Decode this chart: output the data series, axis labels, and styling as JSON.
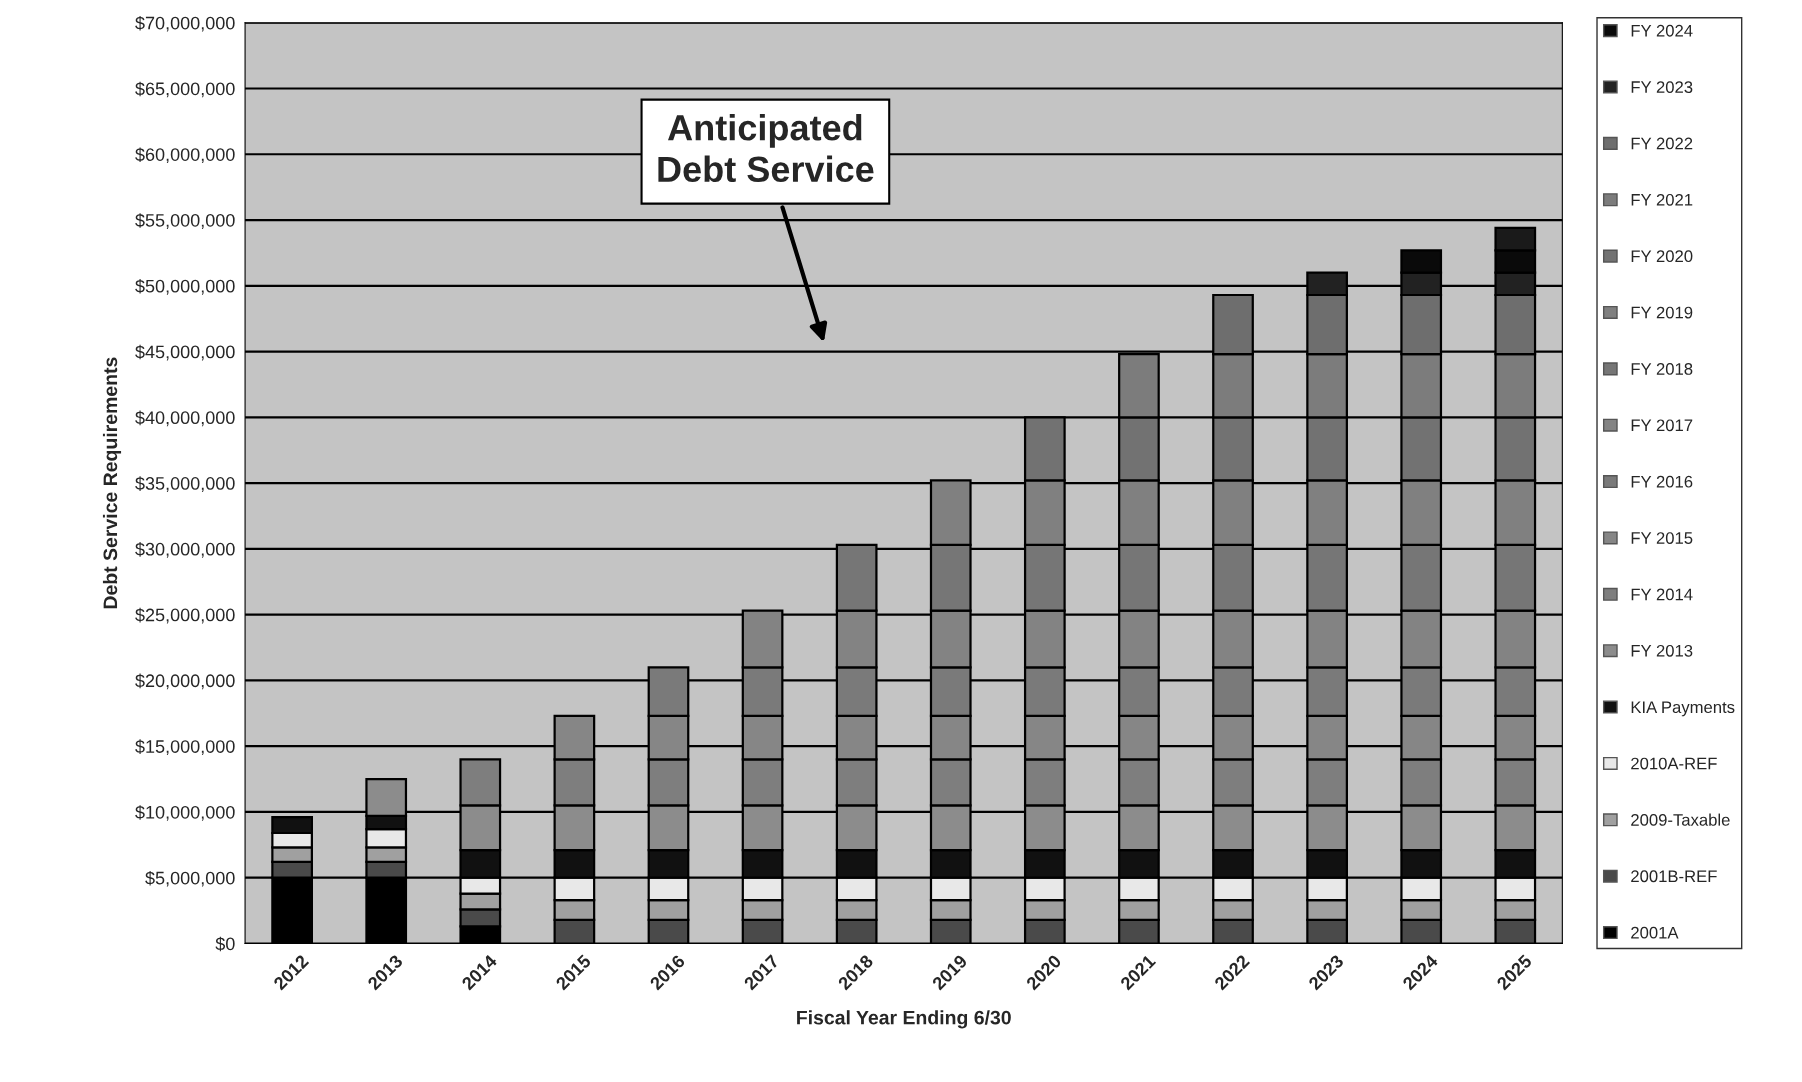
{
  "chart_data": {
    "type": "bar",
    "stacked": true,
    "xlabel": "Fiscal Year Ending 6/30",
    "ylabel": "Debt Service Requirements",
    "annotations": [
      "Anticipated\nDebt Service"
    ],
    "categories": [
      "2012",
      "2013",
      "2014",
      "2015",
      "2016",
      "2017",
      "2018",
      "2019",
      "2020",
      "2021",
      "2022",
      "2023",
      "2024",
      "2025"
    ],
    "ylim": [
      0,
      70000000
    ],
    "yticks": [
      {
        "value": 0,
        "label": "$0"
      },
      {
        "value": 5000000,
        "label": "$5,000,000"
      },
      {
        "value": 10000000,
        "label": "$10,000,000"
      },
      {
        "value": 15000000,
        "label": "$15,000,000"
      },
      {
        "value": 20000000,
        "label": "$20,000,000"
      },
      {
        "value": 25000000,
        "label": "$25,000,000"
      },
      {
        "value": 30000000,
        "label": "$30,000,000"
      },
      {
        "value": 35000000,
        "label": "$35,000,000"
      },
      {
        "value": 40000000,
        "label": "$40,000,000"
      },
      {
        "value": 45000000,
        "label": "$45,000,000"
      },
      {
        "value": 50000000,
        "label": "$50,000,000"
      },
      {
        "value": 55000000,
        "label": "$55,000,000"
      },
      {
        "value": 60000000,
        "label": "$60,000,000"
      },
      {
        "value": 65000000,
        "label": "$65,000,000"
      },
      {
        "value": 70000000,
        "label": "$70,000,000"
      }
    ],
    "grid": "y",
    "legend": "right",
    "series": [
      {
        "name": "2001A",
        "color": "#000000",
        "values": [
          5000000,
          5000000,
          1300000,
          null,
          null,
          null,
          null,
          null,
          null,
          null,
          null,
          null,
          null,
          null
        ]
      },
      {
        "name": "2001B-REF",
        "color": "#4a4a4a",
        "values": [
          1200000,
          1200000,
          1300000,
          1800000,
          1800000,
          1800000,
          1800000,
          1800000,
          1800000,
          1800000,
          1800000,
          1800000,
          1800000,
          1800000
        ]
      },
      {
        "name": "2009-Taxable",
        "color": "#a0a0a0",
        "values": [
          1100000,
          1100000,
          1200000,
          1500000,
          1500000,
          1500000,
          1500000,
          1500000,
          1500000,
          1500000,
          1500000,
          1500000,
          1500000,
          1500000
        ]
      },
      {
        "name": "2010A-REF",
        "color": "#e8e8e8",
        "values": [
          1100000,
          1400000,
          1200000,
          1700000,
          1700000,
          1700000,
          1700000,
          1700000,
          1700000,
          1700000,
          1700000,
          1700000,
          1700000,
          1700000
        ]
      },
      {
        "name": "KIA Payments",
        "color": "#111111",
        "values": [
          1200000,
          1000000,
          2100000,
          2100000,
          2100000,
          2100000,
          2100000,
          2100000,
          2100000,
          2100000,
          2100000,
          2100000,
          2100000,
          2100000
        ]
      },
      {
        "name": "FY 2013",
        "color": "#8c8c8c",
        "values": [
          null,
          2800000,
          3400000,
          3400000,
          3400000,
          3400000,
          3400000,
          3400000,
          3400000,
          3400000,
          3400000,
          3400000,
          3400000,
          3400000
        ]
      },
      {
        "name": "FY 2014",
        "color": "#7e7e7e",
        "values": [
          null,
          null,
          3500000,
          3500000,
          3500000,
          3500000,
          3500000,
          3500000,
          3500000,
          3500000,
          3500000,
          3500000,
          3500000,
          3500000
        ]
      },
      {
        "name": "FY 2015",
        "color": "#868686",
        "values": [
          null,
          null,
          null,
          3300000,
          3300000,
          3300000,
          3300000,
          3300000,
          3300000,
          3300000,
          3300000,
          3300000,
          3300000,
          3300000
        ]
      },
      {
        "name": "FY 2016",
        "color": "#7a7a7a",
        "values": [
          null,
          null,
          null,
          null,
          3700000,
          3700000,
          3700000,
          3700000,
          3700000,
          3700000,
          3700000,
          3700000,
          3700000,
          3700000
        ]
      },
      {
        "name": "FY 2017",
        "color": "#838383",
        "values": [
          null,
          null,
          null,
          null,
          null,
          4300000,
          4300000,
          4300000,
          4300000,
          4300000,
          4300000,
          4300000,
          4300000,
          4300000
        ]
      },
      {
        "name": "FY 2018",
        "color": "#767676",
        "values": [
          null,
          null,
          null,
          null,
          null,
          null,
          5000000,
          5000000,
          5000000,
          5000000,
          5000000,
          5000000,
          5000000,
          5000000
        ]
      },
      {
        "name": "FY 2019",
        "color": "#808080",
        "values": [
          null,
          null,
          null,
          null,
          null,
          null,
          null,
          4900000,
          4900000,
          4900000,
          4900000,
          4900000,
          4900000,
          4900000
        ]
      },
      {
        "name": "FY 2020",
        "color": "#727272",
        "values": [
          null,
          null,
          null,
          null,
          null,
          null,
          null,
          null,
          4800000,
          4800000,
          4800000,
          4800000,
          4800000,
          4800000
        ]
      },
      {
        "name": "FY 2021",
        "color": "#7c7c7c",
        "values": [
          null,
          null,
          null,
          null,
          null,
          null,
          null,
          null,
          null,
          4800000,
          4800000,
          4800000,
          4800000,
          4800000
        ]
      },
      {
        "name": "FY 2022",
        "color": "#6e6e6e",
        "values": [
          null,
          null,
          null,
          null,
          null,
          null,
          null,
          null,
          null,
          null,
          4500000,
          4500000,
          4500000,
          4500000
        ]
      },
      {
        "name": "FY 2023",
        "color": "#222222",
        "values": [
          null,
          null,
          null,
          null,
          null,
          null,
          null,
          null,
          null,
          null,
          null,
          1700000,
          1700000,
          1700000
        ]
      },
      {
        "name": "FY 2024",
        "color": "#0a0a0a",
        "values": [
          null,
          null,
          null,
          null,
          null,
          null,
          null,
          null,
          null,
          null,
          null,
          null,
          1700000,
          1700000
        ]
      },
      {
        "color": "#1a1a1a",
        "values": [
          null,
          null,
          null,
          null,
          null,
          null,
          null,
          null,
          null,
          null,
          null,
          null,
          null,
          1700000
        ]
      }
    ]
  }
}
